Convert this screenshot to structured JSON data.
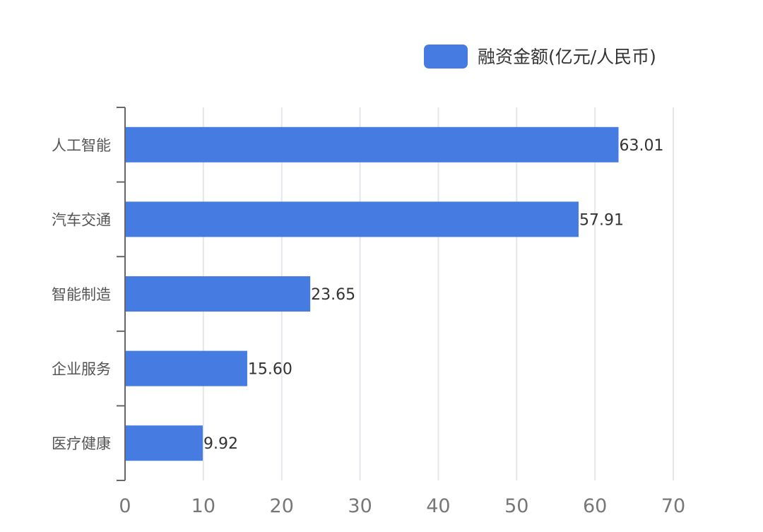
{
  "chart_data": {
    "type": "bar",
    "orientation": "horizontal",
    "title": "",
    "xlabel": "",
    "ylabel": "",
    "categories": [
      "人工智能",
      "汽车交通",
      "智能制造",
      "企业服务",
      "医疗健康"
    ],
    "series": [
      {
        "name": "融资金额(亿元/人民币)",
        "values": [
          63.01,
          57.91,
          23.65,
          15.6,
          9.92
        ],
        "color": "#467be2"
      }
    ],
    "value_labels": [
      "63.01",
      "57.91",
      "23.65",
      "15.60",
      "9.92"
    ],
    "xlim": [
      0,
      70
    ],
    "xticks": [
      0,
      10,
      20,
      30,
      40,
      50,
      60,
      70
    ],
    "grid": true,
    "legend_position": "top-right"
  }
}
